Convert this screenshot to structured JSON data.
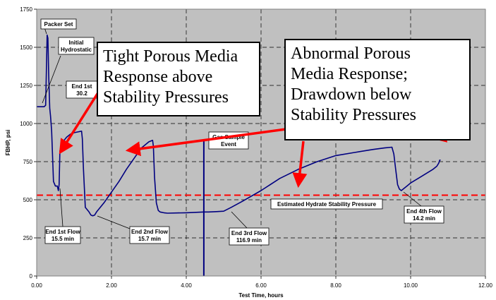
{
  "chart_data": {
    "type": "line",
    "title": "",
    "xlabel": "Test Time, hours",
    "ylabel": "FBHP, psi",
    "xlim": [
      0,
      12
    ],
    "ylim": [
      0,
      1750
    ],
    "xticks": [
      0,
      2,
      4,
      6,
      8,
      10,
      12
    ],
    "xtick_labels": [
      "0.00",
      "2.00",
      "4.00",
      "6.00",
      "8.00",
      "10.00",
      "12.00"
    ],
    "yticks": [
      0,
      250,
      500,
      750,
      1000,
      1250,
      1500,
      1750
    ],
    "ytick_labels": [
      "0",
      "250",
      "500",
      "750",
      "1000",
      "1250",
      "1500",
      "1750"
    ],
    "grid": "dashed",
    "plot_background": "#c0c0c0",
    "series": [
      {
        "color": "#000080",
        "x": [
          0.0,
          0.2,
          0.24,
          0.28,
          0.3,
          0.32,
          0.35,
          0.37,
          0.4,
          0.45,
          0.5,
          0.55,
          0.58,
          0.6,
          0.62,
          0.65,
          0.7,
          0.8,
          0.9,
          1.0,
          1.1,
          1.2,
          1.22,
          1.25,
          1.3,
          1.4,
          1.45,
          1.5,
          1.55,
          1.6,
          1.8,
          2.0,
          2.2,
          2.4,
          2.6,
          2.8,
          3.0,
          3.1,
          3.12,
          3.15,
          3.2,
          3.25,
          3.3,
          3.4,
          3.5,
          4.0,
          4.47
        ],
        "y": [
          1110,
          1110,
          1120,
          1580,
          1560,
          1320,
          1100,
          1050,
          950,
          620,
          590,
          590,
          560,
          600,
          820,
          850,
          880,
          910,
          930,
          940,
          945,
          950,
          900,
          700,
          450,
          420,
          400,
          395,
          400,
          420,
          480,
          550,
          620,
          700,
          770,
          840,
          880,
          890,
          850,
          650,
          480,
          430,
          420,
          415,
          412,
          415,
          420
        ]
      },
      {
        "color": "#000080",
        "x": [
          4.47,
          4.5,
          4.6,
          4.8,
          5.0,
          5.2,
          5.5,
          6.0,
          6.5,
          7.0,
          7.5,
          8.0,
          8.5,
          9.0,
          9.3,
          9.5,
          9.55,
          9.6,
          9.65,
          9.7,
          9.75,
          9.8,
          9.9,
          10.0,
          10.2,
          10.4,
          10.6,
          10.7,
          10.75,
          10.78,
          10.8
        ],
        "y": [
          420,
          420,
          420,
          422,
          425,
          450,
          490,
          560,
          640,
          700,
          750,
          790,
          810,
          830,
          840,
          845,
          800,
          700,
          600,
          570,
          560,
          570,
          590,
          610,
          640,
          670,
          700,
          720,
          740,
          760,
          760
        ]
      },
      {
        "color": "#000080",
        "x": [
          4.47,
          4.47
        ],
        "y": [
          0,
          890
        ]
      }
    ],
    "reference_line": {
      "value": 530,
      "label": "Estimated Hydrate Stability Pressure",
      "color": "#ff0000",
      "style": "dashed"
    },
    "annotations": [
      "Packer Set",
      "Initial Hydrostatic",
      "End 1st 30.2",
      "Gas Sample Event",
      "End 1st Flow 15.5 min",
      "End 2nd Flow 15.7 min",
      "End 3rd Flow 116.9 min",
      "End 4th Flow 14.2 min"
    ],
    "callouts": [
      "Tight Porous Media Response above Stability Pressures",
      "Abnormal Porous Media Response; Drawdown below Stability Pressures"
    ]
  },
  "annotations": {
    "packer_set": [
      "Packer Set"
    ],
    "initial_hydrostatic": [
      "Initial",
      "Hydrostatic"
    ],
    "end_1st_partial": [
      "End 1st",
      "30.2"
    ],
    "gas_sample": [
      "Gas Sample",
      "Event"
    ],
    "hydrate_label": [
      "Estimated Hydrate Stability Pressure"
    ],
    "end_1st_flow": [
      "End 1st Flow",
      "15.5 min"
    ],
    "end_2nd_flow": [
      "End 2nd Flow",
      "15.7 min"
    ],
    "end_3rd_flow": [
      "End 3rd Flow",
      "116.9 min"
    ],
    "end_4th_flow": [
      "End 4th Flow",
      "14.2 min"
    ]
  },
  "callouts": {
    "tight": [
      "Tight Porous Media",
      "Response above",
      "Stability Pressures"
    ],
    "abnormal": [
      "Abnormal Porous",
      "Media Response;",
      "Drawdown below",
      "Stability Pressures"
    ]
  },
  "colors": {
    "plot_bg": "#c0c0c0",
    "data_line": "#000080",
    "hydrate_line": "#ff0000",
    "arrow": "#ff0000"
  }
}
